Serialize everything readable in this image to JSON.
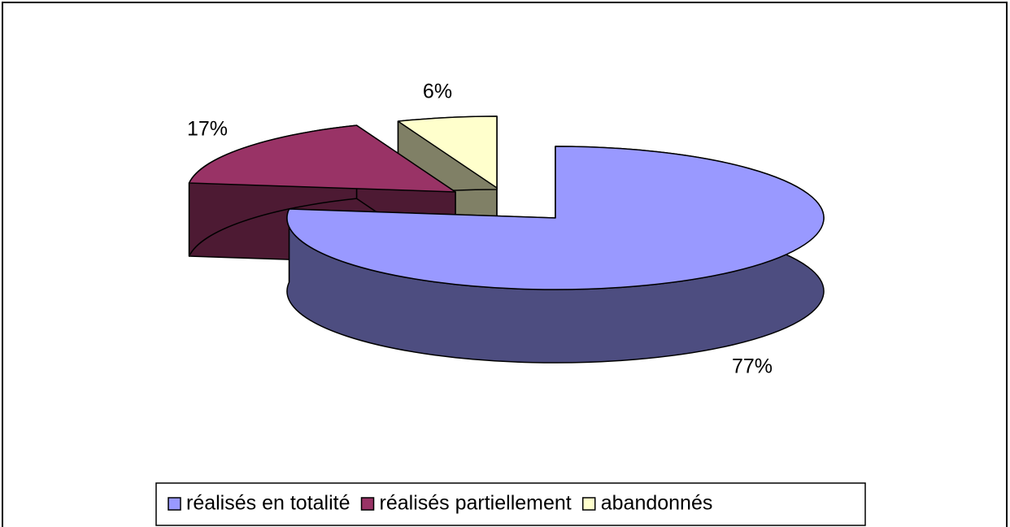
{
  "chart_data": {
    "type": "pie3d",
    "categories": [
      "réalisés en totalité",
      "réalisés partiellement",
      "abandonnés"
    ],
    "values": [
      77,
      17,
      6
    ],
    "value_labels": [
      "77%",
      "17%",
      "6%"
    ],
    "colors": [
      "#9999ff",
      "#993366",
      "#ffffcc"
    ],
    "legend": "bottom"
  }
}
